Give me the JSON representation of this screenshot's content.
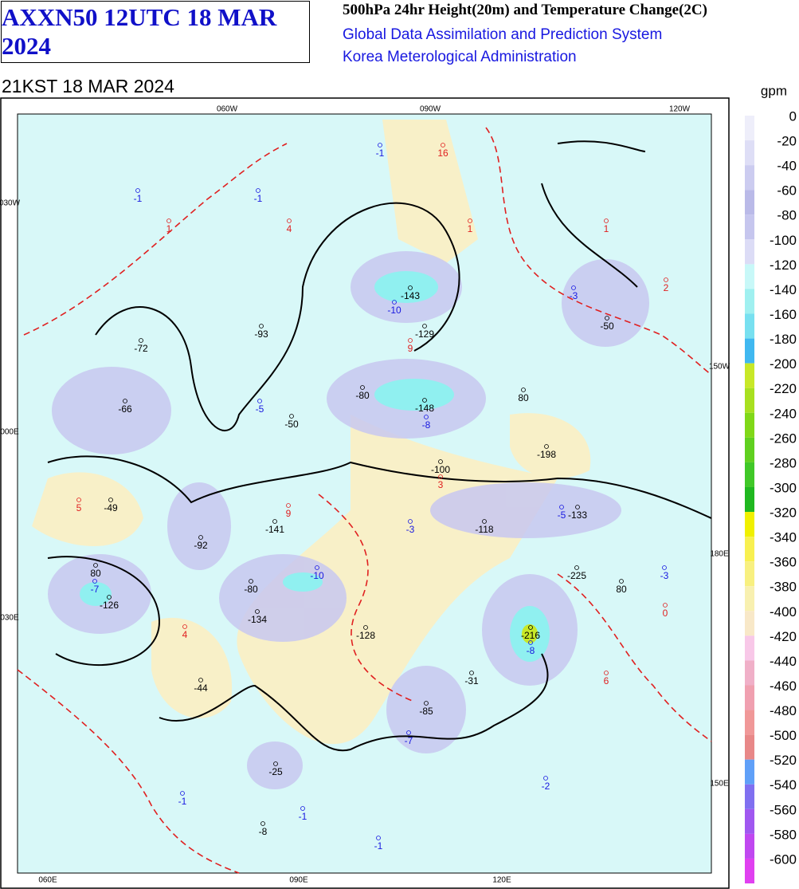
{
  "header": {
    "code": "AXXN50 12UTC 18 MAR 2024",
    "title": "500hPa 24hr Height(20m) and Temperature Change(2C)",
    "agency_lines": [
      "Global Data Assimilation and Prediction System",
      "Korea Meterological Administration"
    ]
  },
  "valid_time": "21KST 18 MAR 2024",
  "grid_labels": [
    "060W",
    "090W",
    "120W",
    "030W",
    "150W",
    "000E",
    "180E",
    "030E",
    "150E",
    "060E",
    "090E",
    "120E"
  ],
  "height_labels": [
    "-143",
    "-129",
    "-93",
    "-72",
    "-66",
    "-50",
    "-148",
    "-100",
    "-198",
    "-49",
    "-141",
    "-92",
    "-118",
    "-133",
    "-225",
    "-126",
    "-134",
    "-128",
    "-216",
    "-44",
    "-31",
    "-85",
    "-25",
    "-8",
    "-50",
    "-80",
    "80",
    "-80",
    "80",
    "80"
  ],
  "cooling_labels": [
    "-1",
    "-1",
    "-1",
    "-10",
    "-3",
    "-5",
    "-8",
    "-3",
    "-5",
    "-10",
    "-7",
    "-3",
    "-8",
    "-7",
    "-2",
    "-1",
    "-1",
    "-1"
  ],
  "warming_labels": [
    "16",
    "1",
    "1",
    "1",
    "4",
    "2",
    "9",
    "5",
    "9",
    "3",
    "4",
    "6",
    "0"
  ],
  "legend": {
    "unit": "gpm",
    "levels": [
      0,
      -20,
      -40,
      -60,
      -80,
      -100,
      -120,
      -140,
      -160,
      -180,
      -200,
      -220,
      -240,
      -260,
      -280,
      -300,
      -320,
      -340,
      -360,
      -380,
      -400,
      -420,
      -440,
      -460,
      -480,
      -500,
      -520,
      -540,
      -560,
      -580,
      -600
    ],
    "colors": [
      "#eeeefa",
      "#dedef6",
      "#ccccf0",
      "#babae8",
      "#c6c6ee",
      "#dcdcf6",
      "#c8f8f8",
      "#a0f0f0",
      "#78e0f0",
      "#40b8f0",
      "#c8e828",
      "#a8e020",
      "#80d818",
      "#60d020",
      "#40c828",
      "#20b820",
      "#f0f000",
      "#f8f050",
      "#f8f080",
      "#f8f0b0",
      "#f8e8c8",
      "#f8c8e8",
      "#f0b0c8",
      "#f0a0b0",
      "#f09898",
      "#e88888",
      "#60a0f8",
      "#8070f0",
      "#a058f0",
      "#c048f0",
      "#e040f0"
    ]
  }
}
